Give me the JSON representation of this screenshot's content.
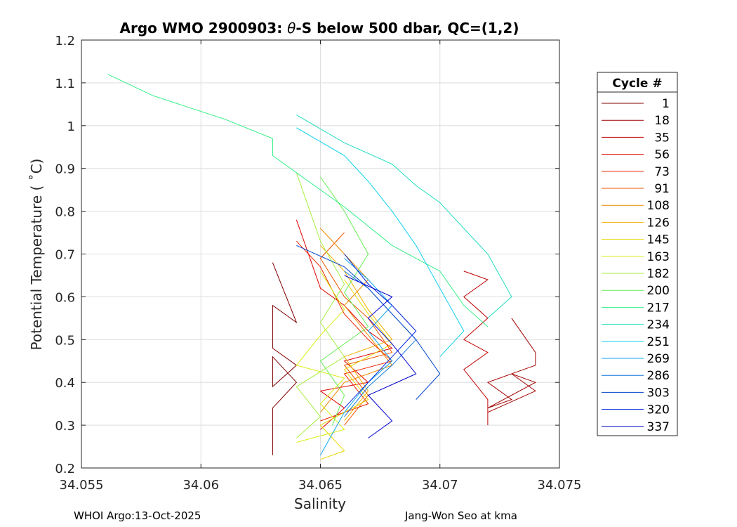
{
  "chart_data": {
    "type": "line",
    "title_prefix": "Argo WMO 2900903: ",
    "title_theta": "θ",
    "title_suffix": "-S below 500 dbar,  QC=(1,2)",
    "xlabel": "Salinity",
    "ylabel": "Potential Temperature ( ˚C)",
    "xlim": [
      34.055,
      34.075
    ],
    "ylim": [
      0.2,
      1.2
    ],
    "xticks": [
      34.055,
      34.06,
      34.065,
      34.07,
      34.075
    ],
    "xtick_labels": [
      "34.055",
      "34.06",
      "34.065",
      "34.07",
      "34.075"
    ],
    "yticks": [
      0.2,
      0.3,
      0.4,
      0.5,
      0.6,
      0.7,
      0.8,
      0.9,
      1,
      1.1,
      1.2
    ],
    "ytick_labels": [
      "0.2",
      "0.3",
      "0.4",
      "0.5",
      "0.6",
      "0.7",
      "0.8",
      "0.9",
      "1",
      "1.1",
      "1.2"
    ],
    "grid": true,
    "legend_title": "Cycle #",
    "legend_position": "right-outside",
    "legend_entries": [
      {
        "label": "1",
        "color": "#800000"
      },
      {
        "label": "18",
        "color": "#a00000"
      },
      {
        "label": "35",
        "color": "#c00000"
      },
      {
        "label": "56",
        "color": "#e00000"
      },
      {
        "label": "73",
        "color": "#ee2200"
      },
      {
        "label": "91",
        "color": "#ee5500"
      },
      {
        "label": "108",
        "color": "#ee8800"
      },
      {
        "label": "126",
        "color": "#eeb000"
      },
      {
        "label": "145",
        "color": "#e8d800"
      },
      {
        "label": "163",
        "color": "#d8ee10"
      },
      {
        "label": "182",
        "color": "#a6ee40"
      },
      {
        "label": "200",
        "color": "#66ee55"
      },
      {
        "label": "217",
        "color": "#33ee88"
      },
      {
        "label": "234",
        "color": "#22ddc0"
      },
      {
        "label": "251",
        "color": "#11d0ee"
      },
      {
        "label": "269",
        "color": "#11a6ee"
      },
      {
        "label": "286",
        "color": "#1177dd"
      },
      {
        "label": "303",
        "color": "#0044cc"
      },
      {
        "label": "320",
        "color": "#0022dd"
      },
      {
        "label": "337",
        "color": "#0000cc"
      }
    ],
    "series": [
      {
        "name": "1",
        "color": "#800000",
        "points": [
          [
            34.063,
            0.23
          ],
          [
            34.063,
            0.34
          ],
          [
            34.064,
            0.4
          ],
          [
            34.063,
            0.46
          ],
          [
            34.063,
            0.39
          ],
          [
            34.064,
            0.44
          ],
          [
            34.063,
            0.48
          ],
          [
            34.063,
            0.58
          ],
          [
            34.064,
            0.54
          ],
          [
            34.063,
            0.68
          ]
        ]
      },
      {
        "name": "18",
        "color": "#a00000",
        "points": [
          [
            34.073,
            0.55
          ],
          [
            34.074,
            0.47
          ],
          [
            34.074,
            0.44
          ],
          [
            34.072,
            0.4
          ],
          [
            34.073,
            0.36
          ],
          [
            34.072,
            0.34
          ],
          [
            34.074,
            0.4
          ],
          [
            34.073,
            0.42
          ],
          [
            34.074,
            0.38
          ],
          [
            34.072,
            0.33
          ]
        ]
      },
      {
        "name": "35",
        "color": "#c00000",
        "points": [
          [
            34.072,
            0.3
          ],
          [
            34.072,
            0.36
          ],
          [
            34.071,
            0.43
          ],
          [
            34.072,
            0.47
          ],
          [
            34.071,
            0.5
          ],
          [
            34.072,
            0.55
          ],
          [
            34.071,
            0.6
          ],
          [
            34.072,
            0.64
          ],
          [
            34.071,
            0.66
          ]
        ]
      },
      {
        "name": "56",
        "color": "#e00000",
        "points": [
          [
            34.065,
            0.29
          ],
          [
            34.066,
            0.34
          ],
          [
            34.065,
            0.38
          ],
          [
            34.067,
            0.4
          ],
          [
            34.066,
            0.45
          ],
          [
            34.068,
            0.48
          ],
          [
            34.067,
            0.52
          ],
          [
            34.066,
            0.58
          ],
          [
            34.065,
            0.62
          ],
          [
            34.064,
            0.78
          ]
        ]
      },
      {
        "name": "73",
        "color": "#ee2200",
        "points": [
          [
            34.065,
            0.31
          ],
          [
            34.067,
            0.35
          ],
          [
            34.066,
            0.42
          ],
          [
            34.068,
            0.45
          ],
          [
            34.067,
            0.5
          ],
          [
            34.066,
            0.56
          ],
          [
            34.065,
            0.67
          ],
          [
            34.064,
            0.73
          ]
        ]
      },
      {
        "name": "91",
        "color": "#ee5500",
        "points": [
          [
            34.066,
            0.3
          ],
          [
            34.067,
            0.37
          ],
          [
            34.066,
            0.44
          ],
          [
            34.068,
            0.47
          ],
          [
            34.067,
            0.55
          ],
          [
            34.066,
            0.6
          ],
          [
            34.065,
            0.69
          ],
          [
            34.066,
            0.75
          ]
        ]
      },
      {
        "name": "108",
        "color": "#ee8800",
        "points": [
          [
            34.065,
            0.33
          ],
          [
            34.066,
            0.4
          ],
          [
            34.068,
            0.44
          ],
          [
            34.067,
            0.51
          ],
          [
            34.066,
            0.58
          ],
          [
            34.067,
            0.64
          ],
          [
            34.065,
            0.76
          ]
        ]
      },
      {
        "name": "126",
        "color": "#eeb000",
        "points": [
          [
            34.066,
            0.31
          ],
          [
            34.067,
            0.38
          ],
          [
            34.066,
            0.46
          ],
          [
            34.068,
            0.5
          ],
          [
            34.067,
            0.57
          ],
          [
            34.066,
            0.66
          ],
          [
            34.065,
            0.72
          ]
        ]
      },
      {
        "name": "145",
        "color": "#e8d800",
        "points": [
          [
            34.065,
            0.22
          ],
          [
            34.066,
            0.24
          ],
          [
            34.065,
            0.3
          ],
          [
            34.067,
            0.36
          ],
          [
            34.066,
            0.43
          ],
          [
            34.068,
            0.49
          ],
          [
            34.067,
            0.56
          ],
          [
            34.066,
            0.64
          ]
        ]
      },
      {
        "name": "163",
        "color": "#d8ee10",
        "points": [
          [
            34.064,
            0.26
          ],
          [
            34.066,
            0.29
          ],
          [
            34.065,
            0.35
          ],
          [
            34.066,
            0.41
          ],
          [
            34.064,
            0.44
          ],
          [
            34.065,
            0.51
          ],
          [
            34.066,
            0.57
          ],
          [
            34.065,
            0.66
          ]
        ]
      },
      {
        "name": "182",
        "color": "#a6ee40",
        "points": [
          [
            34.064,
            0.27
          ],
          [
            34.065,
            0.32
          ],
          [
            34.064,
            0.39
          ],
          [
            34.066,
            0.46
          ],
          [
            34.065,
            0.54
          ],
          [
            34.066,
            0.63
          ],
          [
            34.065,
            0.73
          ],
          [
            34.064,
            0.89
          ]
        ]
      },
      {
        "name": "200",
        "color": "#66ee55",
        "points": [
          [
            34.0655,
            0.3
          ],
          [
            34.066,
            0.37
          ],
          [
            34.065,
            0.45
          ],
          [
            34.067,
            0.53
          ],
          [
            34.066,
            0.61
          ],
          [
            34.067,
            0.7
          ],
          [
            34.066,
            0.8
          ],
          [
            34.065,
            0.88
          ]
        ]
      },
      {
        "name": "217",
        "color": "#33ee88",
        "points": [
          [
            34.0561,
            1.12
          ],
          [
            34.058,
            1.07
          ],
          [
            34.061,
            1.015
          ],
          [
            34.063,
            0.97
          ],
          [
            34.063,
            0.93
          ],
          [
            34.064,
            0.89
          ],
          [
            34.066,
            0.81
          ],
          [
            34.068,
            0.72
          ],
          [
            34.07,
            0.66
          ],
          [
            34.071,
            0.58
          ],
          [
            34.072,
            0.53
          ]
        ]
      },
      {
        "name": "234",
        "color": "#22ddc0",
        "points": [
          [
            34.064,
            1.025
          ],
          [
            34.066,
            0.96
          ],
          [
            34.068,
            0.91
          ],
          [
            34.069,
            0.86
          ],
          [
            34.07,
            0.82
          ],
          [
            34.071,
            0.76
          ],
          [
            34.072,
            0.7
          ],
          [
            34.073,
            0.6
          ],
          [
            34.072,
            0.55
          ]
        ]
      },
      {
        "name": "251",
        "color": "#11d0ee",
        "points": [
          [
            34.064,
            0.995
          ],
          [
            34.066,
            0.93
          ],
          [
            34.067,
            0.87
          ],
          [
            34.068,
            0.8
          ],
          [
            34.069,
            0.72
          ],
          [
            34.07,
            0.62
          ],
          [
            34.071,
            0.52
          ],
          [
            34.07,
            0.46
          ]
        ]
      },
      {
        "name": "269",
        "color": "#11a6ee",
        "points": [
          [
            34.065,
            0.23
          ],
          [
            34.066,
            0.33
          ],
          [
            34.067,
            0.4
          ],
          [
            34.068,
            0.45
          ],
          [
            34.067,
            0.52
          ],
          [
            34.068,
            0.58
          ],
          [
            34.067,
            0.64
          ],
          [
            34.066,
            0.69
          ]
        ]
      },
      {
        "name": "286",
        "color": "#1177dd",
        "points": [
          [
            34.066,
            0.32
          ],
          [
            34.067,
            0.39
          ],
          [
            34.068,
            0.44
          ],
          [
            34.069,
            0.5
          ],
          [
            34.068,
            0.56
          ],
          [
            34.067,
            0.62
          ],
          [
            34.066,
            0.66
          ]
        ]
      },
      {
        "name": "303",
        "color": "#0044cc",
        "points": [
          [
            34.064,
            0.72
          ],
          [
            34.066,
            0.67
          ],
          [
            34.067,
            0.62
          ],
          [
            34.068,
            0.56
          ],
          [
            34.069,
            0.5
          ],
          [
            34.07,
            0.42
          ],
          [
            34.069,
            0.36
          ]
        ]
      },
      {
        "name": "320",
        "color": "#0022dd",
        "points": [
          [
            34.066,
            0.34
          ],
          [
            34.067,
            0.4
          ],
          [
            34.068,
            0.46
          ],
          [
            34.069,
            0.52
          ],
          [
            34.068,
            0.58
          ],
          [
            34.067,
            0.63
          ],
          [
            34.066,
            0.7
          ]
        ]
      },
      {
        "name": "337",
        "color": "#0000cc",
        "points": [
          [
            34.067,
            0.27
          ],
          [
            34.068,
            0.31
          ],
          [
            34.067,
            0.37
          ],
          [
            34.069,
            0.42
          ],
          [
            34.068,
            0.49
          ],
          [
            34.067,
            0.55
          ],
          [
            34.068,
            0.6
          ],
          [
            34.066,
            0.65
          ]
        ]
      }
    ]
  },
  "footer": {
    "left": "WHOI Argo:13-Oct-2025",
    "right": "Jang-Won Seo at kma"
  }
}
